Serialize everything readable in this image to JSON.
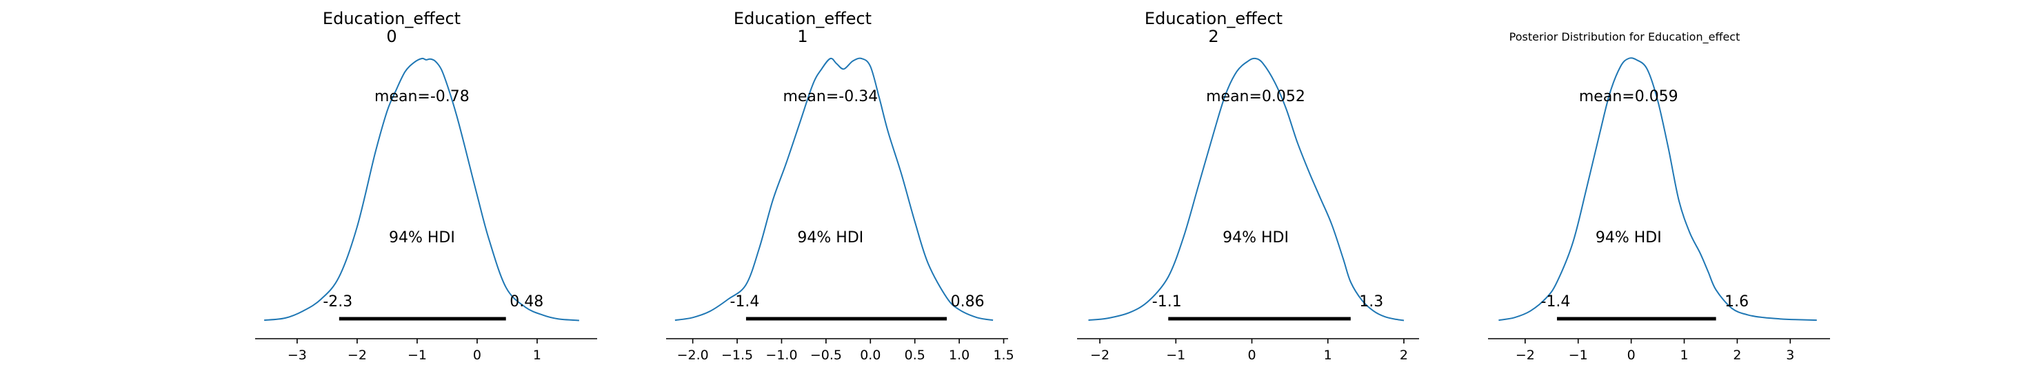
{
  "chart_data": [
    {
      "type": "density",
      "title": "Education_effect",
      "subtitle": "0",
      "mean_label": "mean=-0.78",
      "hdi_label": "94% HDI",
      "hdi": [
        -2.3,
        0.48
      ],
      "hdi_low_label": "-2.3",
      "hdi_high_label": "0.48",
      "xlim": [
        -3.7,
        2.0
      ],
      "xticks": [
        -3,
        -2,
        -1,
        0,
        1
      ],
      "xtick_labels": [
        "−3",
        "−2",
        "−1",
        "0",
        "1"
      ],
      "curve": {
        "x": [
          -3.55,
          -3.2,
          -2.9,
          -2.6,
          -2.3,
          -2.0,
          -1.7,
          -1.5,
          -1.35,
          -1.2,
          -1.05,
          -0.92,
          -0.85,
          -0.78,
          -0.7,
          -0.6,
          -0.5,
          -0.35,
          -0.2,
          0.0,
          0.2,
          0.48,
          0.8,
          1.1,
          1.35,
          1.7
        ],
        "y": [
          0.005,
          0.013,
          0.04,
          0.085,
          0.17,
          0.36,
          0.64,
          0.8,
          0.88,
          0.95,
          0.985,
          1.0,
          0.995,
          0.998,
          0.99,
          0.96,
          0.9,
          0.79,
          0.66,
          0.48,
          0.31,
          0.13,
          0.055,
          0.024,
          0.01,
          0.004
        ]
      },
      "line_color": "#1f77b4"
    },
    {
      "type": "density",
      "title": "Education_effect",
      "subtitle": "1",
      "mean_label": "mean=-0.34",
      "hdi_label": "94% HDI",
      "hdi": [
        -1.4,
        0.86
      ],
      "hdi_low_label": "-1.4",
      "hdi_high_label": "0.86",
      "xlim": [
        -2.3,
        1.55
      ],
      "xticks": [
        -2.0,
        -1.5,
        -1.0,
        -0.5,
        0.0,
        0.5,
        1.0,
        1.5
      ],
      "xtick_labels": [
        "−2.0",
        "−1.5",
        "−1.0",
        "−0.5",
        "0.0",
        "0.5",
        "1.0",
        "1.5"
      ],
      "curve": {
        "x": [
          -2.2,
          -2.0,
          -1.8,
          -1.6,
          -1.4,
          -1.25,
          -1.1,
          -0.95,
          -0.8,
          -0.65,
          -0.55,
          -0.45,
          -0.38,
          -0.3,
          -0.2,
          -0.1,
          0.0,
          0.1,
          0.2,
          0.35,
          0.5,
          0.65,
          0.86,
          1.0,
          1.2,
          1.38
        ],
        "y": [
          0.005,
          0.015,
          0.04,
          0.085,
          0.14,
          0.28,
          0.46,
          0.6,
          0.75,
          0.9,
          0.96,
          1.0,
          0.98,
          0.96,
          0.99,
          1.0,
          0.97,
          0.85,
          0.72,
          0.56,
          0.38,
          0.22,
          0.09,
          0.045,
          0.015,
          0.005
        ]
      },
      "line_color": "#1f77b4"
    },
    {
      "type": "density",
      "title": "Education_effect",
      "subtitle": "2",
      "mean_label": "mean=0.052",
      "hdi_label": "94% HDI",
      "hdi": [
        -1.1,
        1.3
      ],
      "hdi_low_label": "-1.1",
      "hdi_high_label": "1.3",
      "xlim": [
        -2.3,
        2.2
      ],
      "xticks": [
        -2,
        -1,
        0,
        1,
        2
      ],
      "xtick_labels": [
        "−2",
        "−1",
        "0",
        "1",
        "2"
      ],
      "curve": {
        "x": [
          -2.15,
          -1.9,
          -1.6,
          -1.35,
          -1.1,
          -0.9,
          -0.7,
          -0.5,
          -0.35,
          -0.2,
          -0.05,
          0.05,
          0.15,
          0.3,
          0.45,
          0.6,
          0.75,
          0.9,
          1.05,
          1.2,
          1.3,
          1.45,
          1.6,
          1.75,
          1.9,
          2.0
        ],
        "y": [
          0.005,
          0.012,
          0.035,
          0.08,
          0.17,
          0.32,
          0.52,
          0.72,
          0.86,
          0.95,
          0.99,
          1.0,
          0.98,
          0.91,
          0.81,
          0.68,
          0.57,
          0.47,
          0.37,
          0.24,
          0.15,
          0.08,
          0.04,
          0.018,
          0.008,
          0.004
        ]
      },
      "line_color": "#1f77b4"
    },
    {
      "type": "density",
      "title": "Posterior Distribution for Education_effect",
      "subtitle": "",
      "mean_label": "mean=0.059",
      "hdi_label": "94% HDI",
      "hdi": [
        -1.4,
        1.6
      ],
      "hdi_low_label": "-1.4",
      "hdi_high_label": "1.6",
      "xlim": [
        -2.7,
        3.75
      ],
      "xticks": [
        -2,
        -1,
        0,
        1,
        2,
        3
      ],
      "xtick_labels": [
        "−2",
        "−1",
        "0",
        "1",
        "2",
        "3"
      ],
      "curve": {
        "x": [
          -2.5,
          -2.2,
          -1.9,
          -1.6,
          -1.4,
          -1.1,
          -0.85,
          -0.6,
          -0.4,
          -0.2,
          -0.05,
          0.1,
          0.3,
          0.5,
          0.7,
          0.9,
          1.1,
          1.3,
          1.45,
          1.6,
          1.9,
          2.2,
          2.5,
          2.8,
          3.1,
          3.5
        ],
        "y": [
          0.005,
          0.015,
          0.04,
          0.09,
          0.15,
          0.3,
          0.5,
          0.71,
          0.87,
          0.97,
          1.0,
          0.995,
          0.96,
          0.84,
          0.66,
          0.46,
          0.34,
          0.26,
          0.19,
          0.12,
          0.05,
          0.025,
          0.015,
          0.01,
          0.007,
          0.005
        ]
      },
      "line_color": "#1f77b4"
    }
  ]
}
